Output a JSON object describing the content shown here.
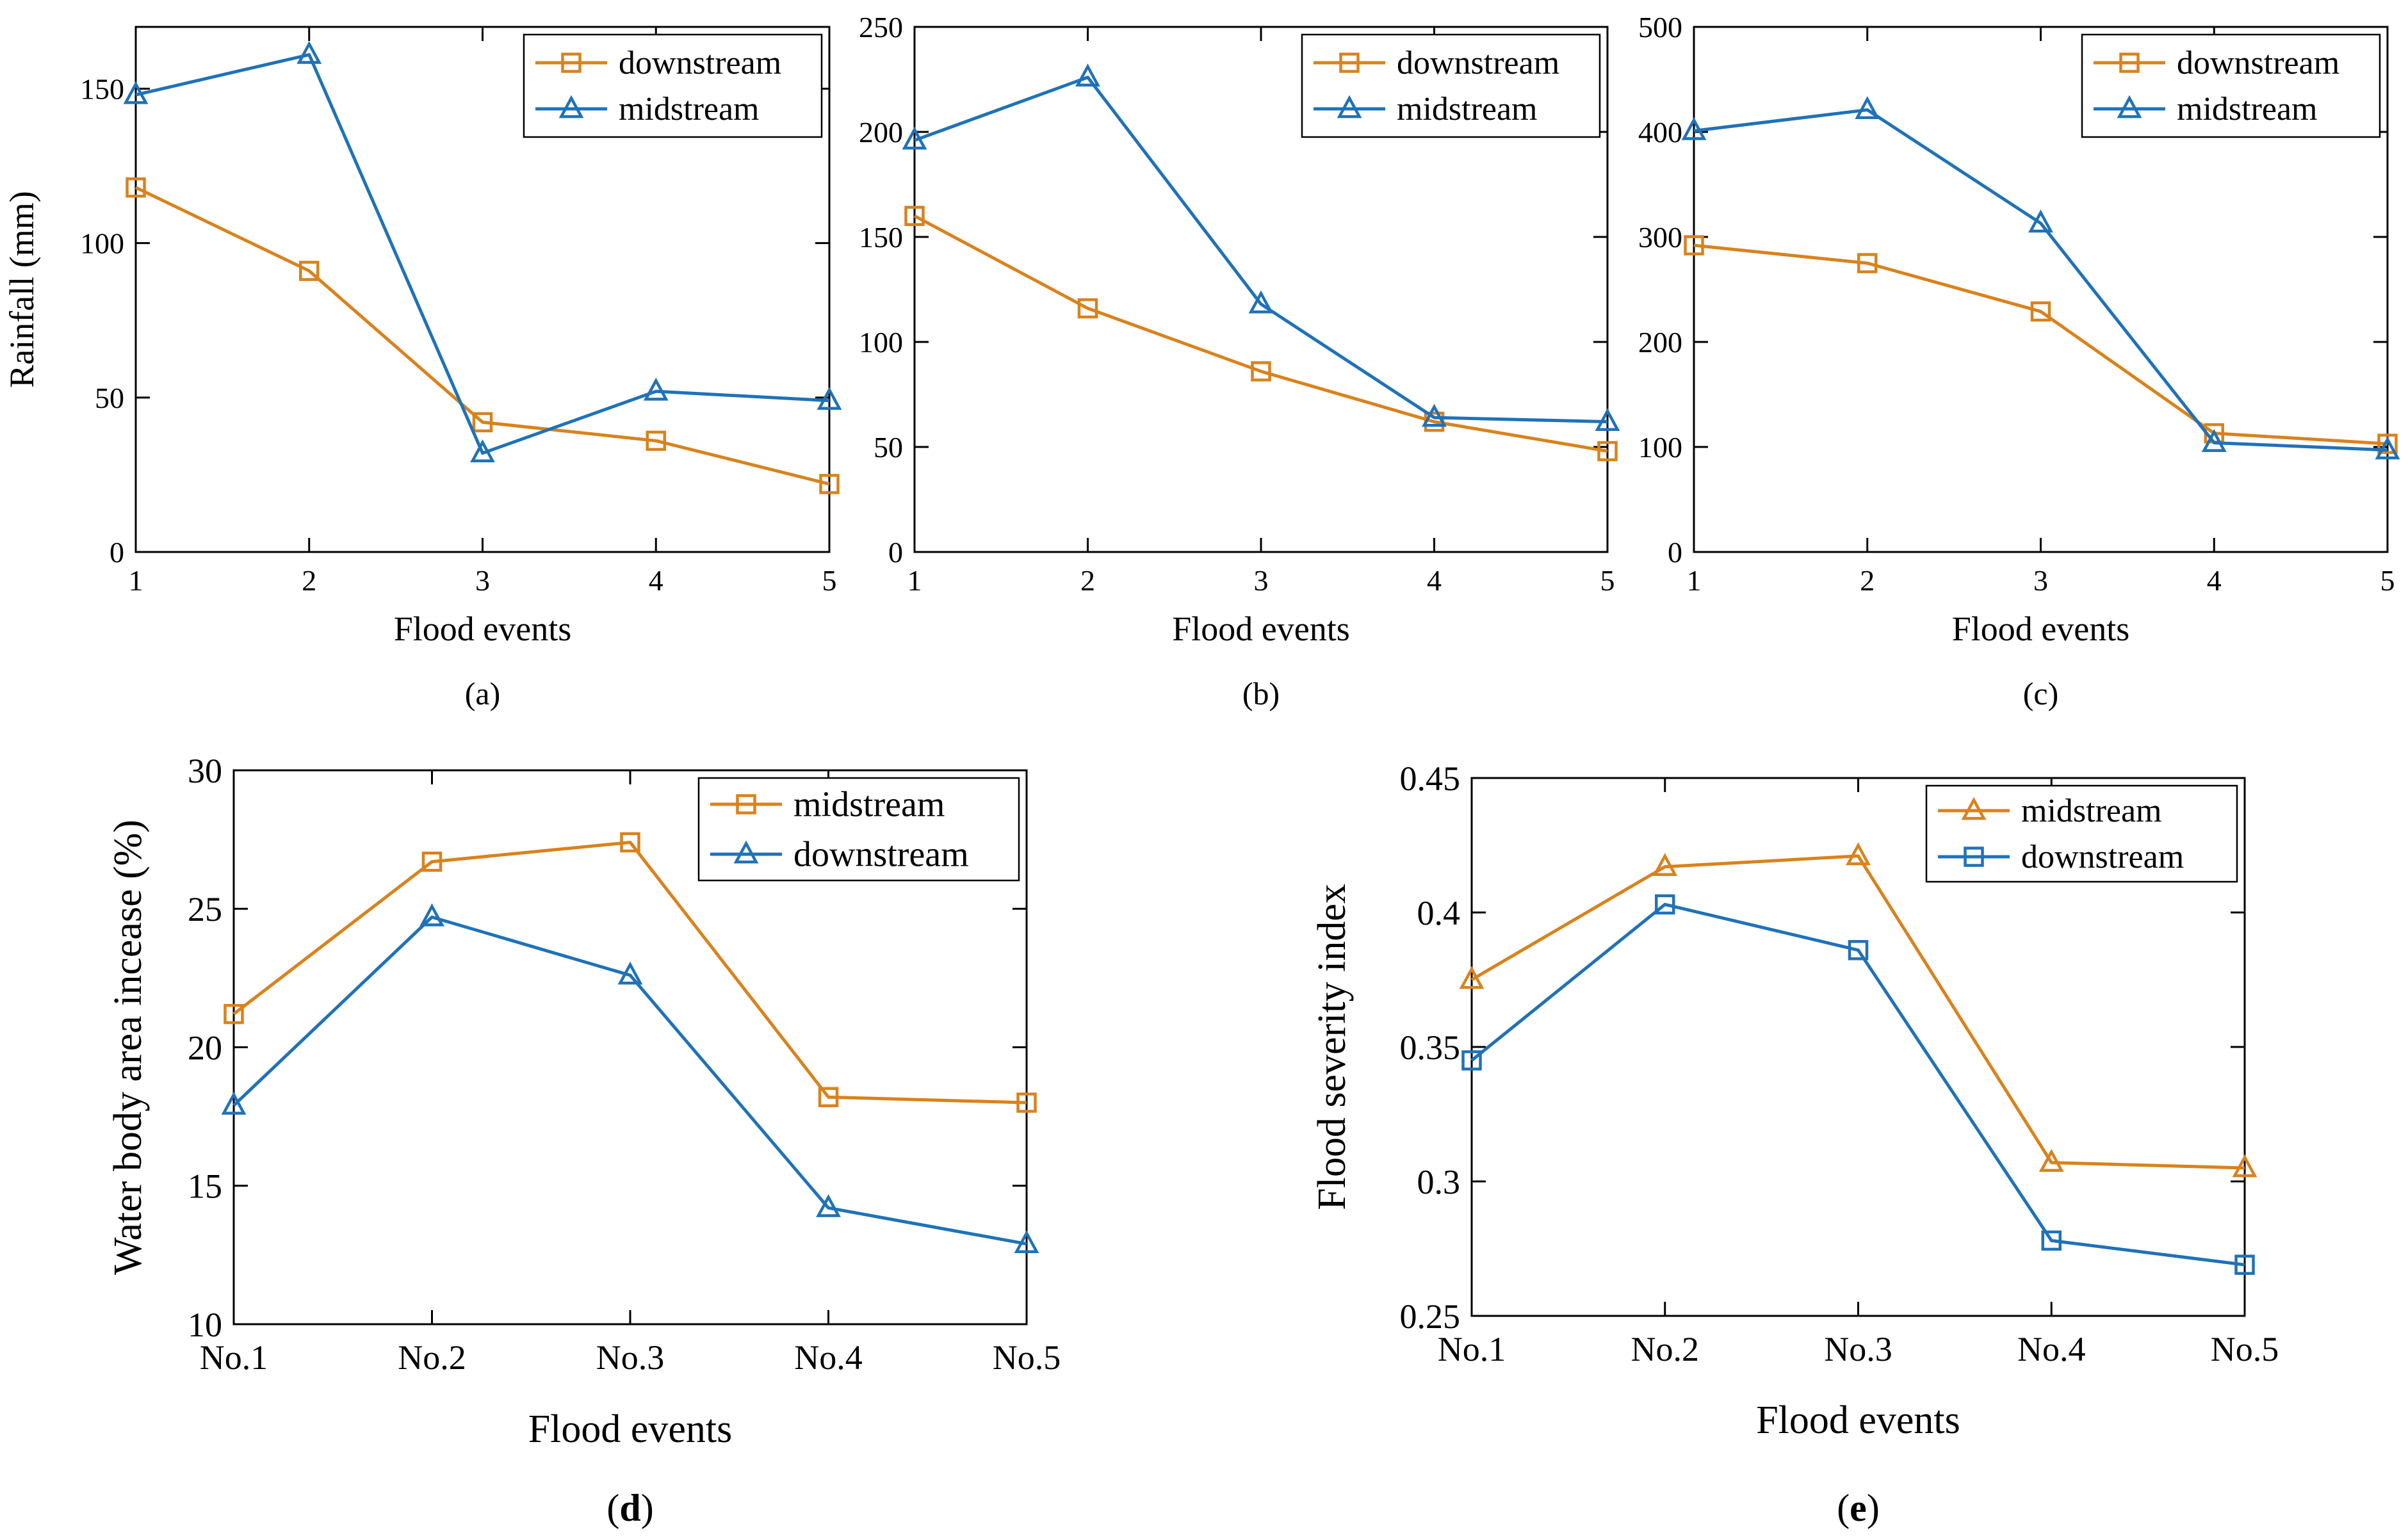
{
  "colors": {
    "orange": "#D9821C",
    "blue": "#1F72B8",
    "axis": "#000000"
  },
  "chart_data": [
    {
      "type": "line",
      "panel_label": "(a)",
      "xlabel": "Flood events",
      "ylabel": "Rainfall (mm)",
      "categories": [
        "1",
        "2",
        "3",
        "4",
        "5"
      ],
      "x": [
        1,
        2,
        3,
        4,
        5
      ],
      "xlim": [
        1,
        5
      ],
      "ylim": [
        0,
        170
      ],
      "yticks": [
        0,
        50,
        100,
        150
      ],
      "legend_position": "top-right",
      "grid": false,
      "series": [
        {
          "name": "downstream",
          "marker": "square",
          "color": "#D9821C",
          "values": [
            118,
            91,
            42,
            36,
            22
          ]
        },
        {
          "name": "midstream",
          "marker": "triangle",
          "color": "#1F72B8",
          "values": [
            148,
            161,
            32,
            52,
            49
          ]
        }
      ]
    },
    {
      "type": "line",
      "panel_label": "(b)",
      "xlabel": "Flood events",
      "ylabel": "",
      "categories": [
        "1",
        "2",
        "3",
        "4",
        "5"
      ],
      "x": [
        1,
        2,
        3,
        4,
        5
      ],
      "xlim": [
        1,
        5
      ],
      "ylim": [
        0,
        250
      ],
      "yticks": [
        0,
        50,
        100,
        150,
        200,
        250
      ],
      "legend_position": "top-right",
      "grid": false,
      "series": [
        {
          "name": "downstream",
          "marker": "square",
          "color": "#D9821C",
          "values": [
            160,
            116,
            86,
            62,
            48
          ]
        },
        {
          "name": "midstream",
          "marker": "triangle",
          "color": "#1F72B8",
          "values": [
            196,
            226,
            118,
            64,
            62
          ]
        }
      ]
    },
    {
      "type": "line",
      "panel_label": "(c)",
      "xlabel": "Flood events",
      "ylabel": "",
      "categories": [
        "1",
        "2",
        "3",
        "4",
        "5"
      ],
      "x": [
        1,
        2,
        3,
        4,
        5
      ],
      "xlim": [
        1,
        5
      ],
      "ylim": [
        0,
        500
      ],
      "yticks": [
        0,
        100,
        200,
        300,
        400,
        500
      ],
      "legend_position": "top-right",
      "grid": false,
      "series": [
        {
          "name": "downstream",
          "marker": "square",
          "color": "#D9821C",
          "values": [
            292,
            275,
            229,
            113,
            103
          ]
        },
        {
          "name": "midstream",
          "marker": "triangle",
          "color": "#1F72B8",
          "values": [
            401,
            421,
            313,
            104,
            97
          ]
        }
      ]
    },
    {
      "type": "line",
      "panel_label": "(d)",
      "xlabel": "Flood events",
      "ylabel": "Water body area incease (%)",
      "categories": [
        "No.1",
        "No.2",
        "No.3",
        "No.4",
        "No.5"
      ],
      "x": [
        1,
        2,
        3,
        4,
        5
      ],
      "xlim": [
        1,
        5
      ],
      "ylim": [
        10,
        30
      ],
      "yticks": [
        10,
        15,
        20,
        25,
        30
      ],
      "legend_position": "top-right",
      "grid": false,
      "series": [
        {
          "name": "midstream",
          "marker": "square",
          "color": "#D9821C",
          "values": [
            21.2,
            26.7,
            27.4,
            18.2,
            18.0
          ]
        },
        {
          "name": "downstream",
          "marker": "triangle",
          "color": "#1F72B8",
          "values": [
            17.9,
            24.7,
            22.6,
            14.2,
            12.9
          ]
        }
      ]
    },
    {
      "type": "line",
      "panel_label": "(e)",
      "xlabel": "Flood events",
      "ylabel": "Flood severity index",
      "categories": [
        "No.1",
        "No.2",
        "No.3",
        "No.4",
        "No.5"
      ],
      "x": [
        1,
        2,
        3,
        4,
        5
      ],
      "xlim": [
        1,
        5
      ],
      "ylim": [
        0.25,
        0.45
      ],
      "yticks": [
        0.25,
        0.3,
        0.35,
        0.4,
        0.45
      ],
      "legend_position": "top-right",
      "grid": false,
      "series": [
        {
          "name": "midstream",
          "marker": "triangle",
          "color": "#D9821C",
          "values": [
            0.375,
            0.417,
            0.421,
            0.307,
            0.305
          ]
        },
        {
          "name": "downstream",
          "marker": "square",
          "color": "#1F72B8",
          "values": [
            0.345,
            0.403,
            0.386,
            0.278,
            0.269
          ]
        }
      ]
    }
  ]
}
